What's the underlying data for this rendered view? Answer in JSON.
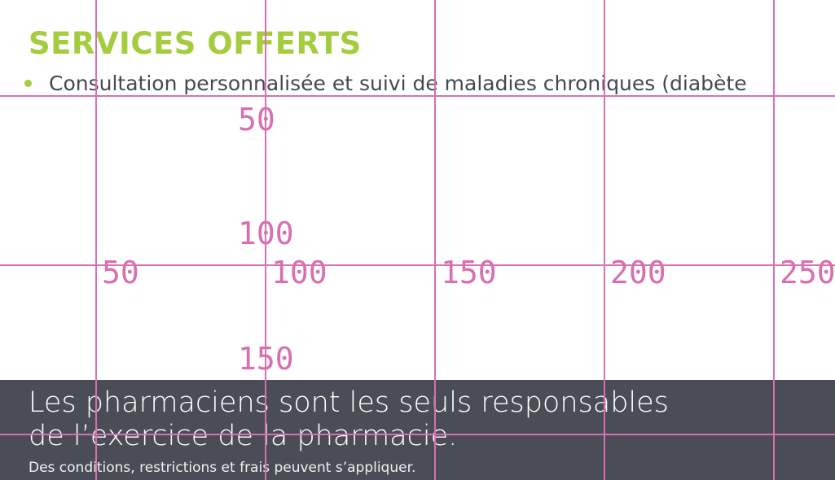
{
  "services": {
    "title": "SERVICES OFFERTS",
    "items": [
      "Consultation personnalisée et suivi de maladies chroniques (diabète"
    ]
  },
  "footer": {
    "line1": "Les pharmaciens sont les seuls responsables",
    "line2": "de l’exercice de la pharmacie.",
    "disclaimer": "Des conditions, restrictions et frais peuvent s’appliquer."
  },
  "grid_overlay": {
    "color": "#d86fb0",
    "x_labels": [
      "50",
      "100",
      "150",
      "200",
      "250"
    ],
    "y_labels": [
      "50",
      "100",
      "150"
    ]
  },
  "colors": {
    "accent": "#a4cd3e",
    "footer_bg": "#4a4d55",
    "text": "#454852"
  }
}
